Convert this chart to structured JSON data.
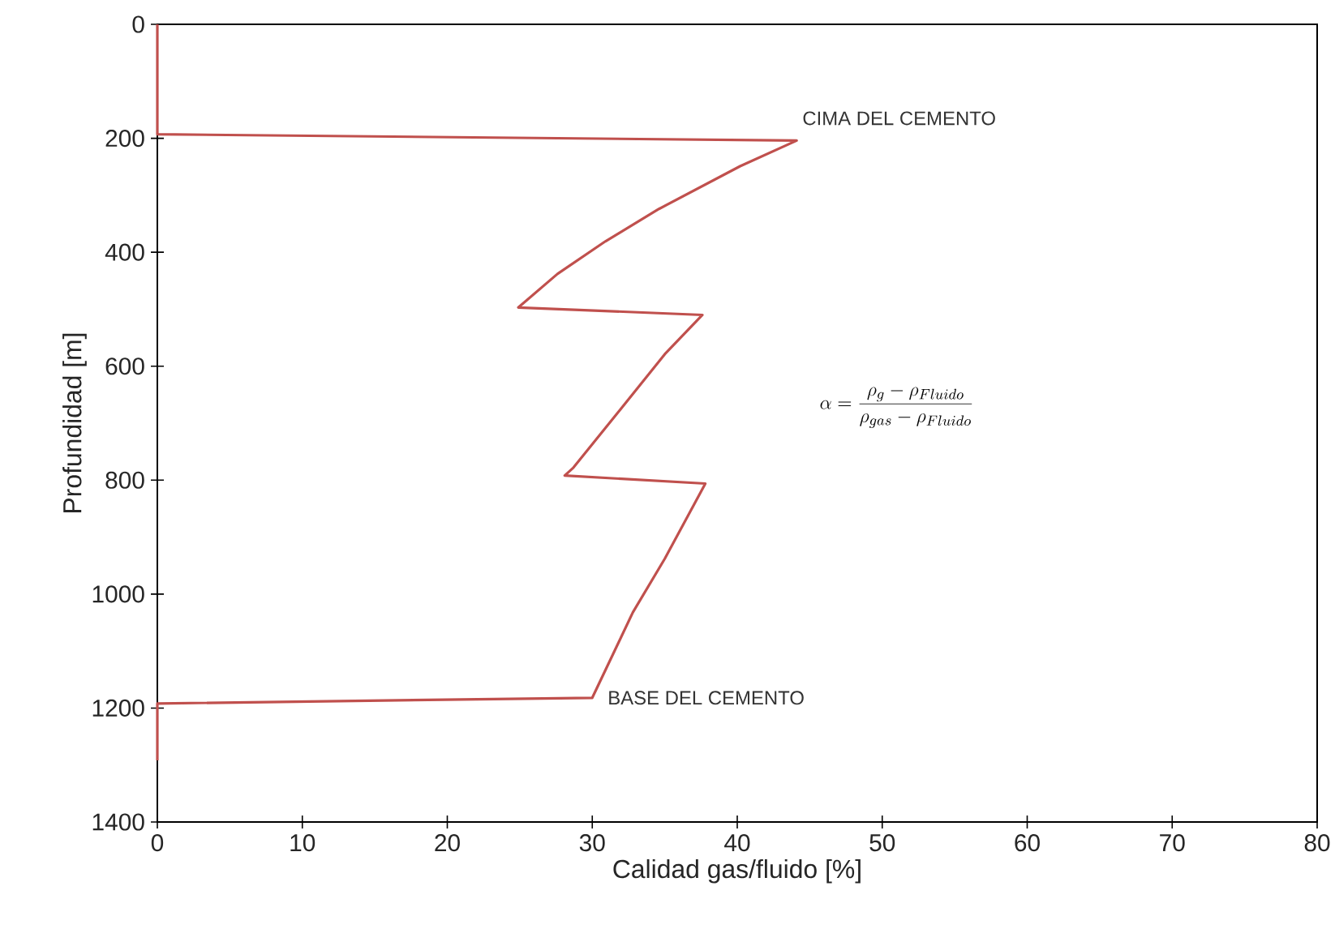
{
  "chart_data": {
    "type": "line",
    "xlabel": "Calidad  gas/fluido [%]",
    "ylabel": "Profundidad [m]",
    "xlim": [
      0,
      80
    ],
    "ylim": [
      1400,
      0
    ],
    "xticks": [
      0,
      10,
      20,
      30,
      40,
      50,
      60,
      70,
      80
    ],
    "yticks": [
      0,
      200,
      400,
      600,
      800,
      1000,
      1200,
      1400
    ],
    "grid": false,
    "marker": "none",
    "line_style": "solid",
    "series": [
      {
        "color": "#c0504d",
        "x": [
          0,
          0,
          44.1,
          40.2,
          34.6,
          30.9,
          27.6,
          24.9,
          37.6,
          35.0,
          32.0,
          28.7,
          28.1,
          37.8,
          35.0,
          32.8,
          30.0,
          0,
          0
        ],
        "values": [
          0,
          193,
          204,
          249,
          324,
          381,
          438,
          497,
          510,
          579,
          674,
          778,
          792,
          806,
          938,
          1032,
          1182,
          1192,
          1292
        ]
      }
    ],
    "annotations": [
      {
        "text": "CIMA DEL CEMENTO",
        "x": 44.1,
        "y": 204
      },
      {
        "text": "BASE DEL CEMENTO",
        "x": 30.0,
        "y": 1182
      },
      "\\alpha = \\frac{\\rho_{g} - \\rho_{Fluido}}{\\rho_{gas} - \\rho_{Fluido}}"
    ]
  }
}
